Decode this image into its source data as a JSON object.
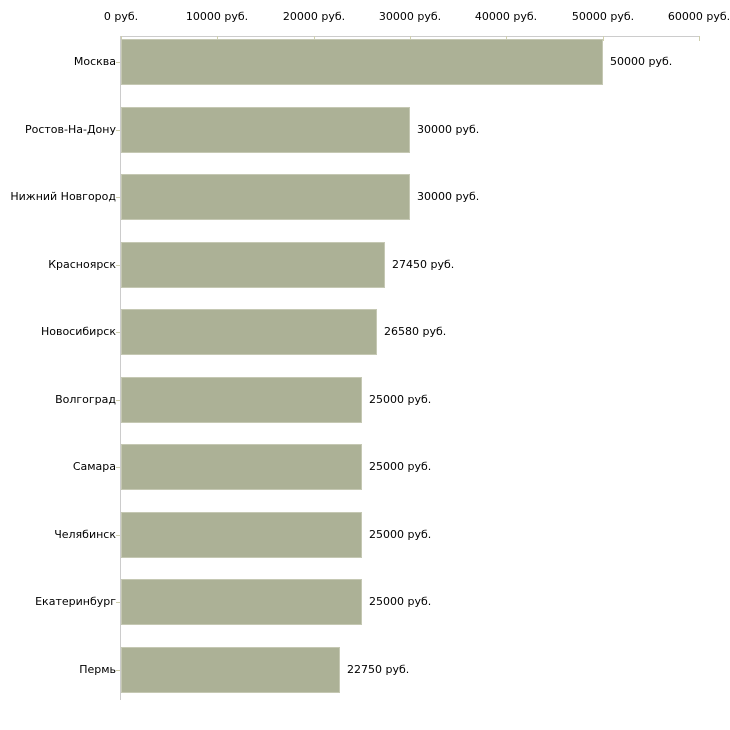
{
  "chart_data": {
    "type": "bar",
    "orientation": "horizontal",
    "title": "",
    "categories": [
      "Москва",
      "Ростов-На-Дону",
      "Нижний Новгород",
      "Красноярск",
      "Новосибирск",
      "Волгоград",
      "Самара",
      "Челябинск",
      "Екатеринбург",
      "Пермь"
    ],
    "values": [
      50000,
      30000,
      30000,
      27450,
      26580,
      25000,
      25000,
      25000,
      25000,
      22750
    ],
    "value_labels": [
      "50000 руб.",
      "30000 руб.",
      "30000 руб.",
      "27450 руб.",
      "26580 руб.",
      "25000 руб.",
      "25000 руб.",
      "25000 руб.",
      "25000 руб.",
      "22750 руб."
    ],
    "x_ticks": [
      0,
      10000,
      20000,
      30000,
      40000,
      50000,
      60000
    ],
    "x_tick_labels": [
      "0 руб.",
      "10000 руб.",
      "20000 руб.",
      "30000 руб.",
      "40000 руб.",
      "50000 руб.",
      "60000 руб."
    ],
    "xlim": [
      0,
      60000
    ],
    "xlabel": "",
    "ylabel": "",
    "grid": false,
    "legend_position": "none",
    "colors": {
      "bar_fill": "#acb196",
      "bar_outline": "#c5c8b3",
      "axis_line": "#cccccc",
      "tick_mark": "#cfcfae",
      "text": "#000000",
      "background": "#ffffff"
    }
  }
}
